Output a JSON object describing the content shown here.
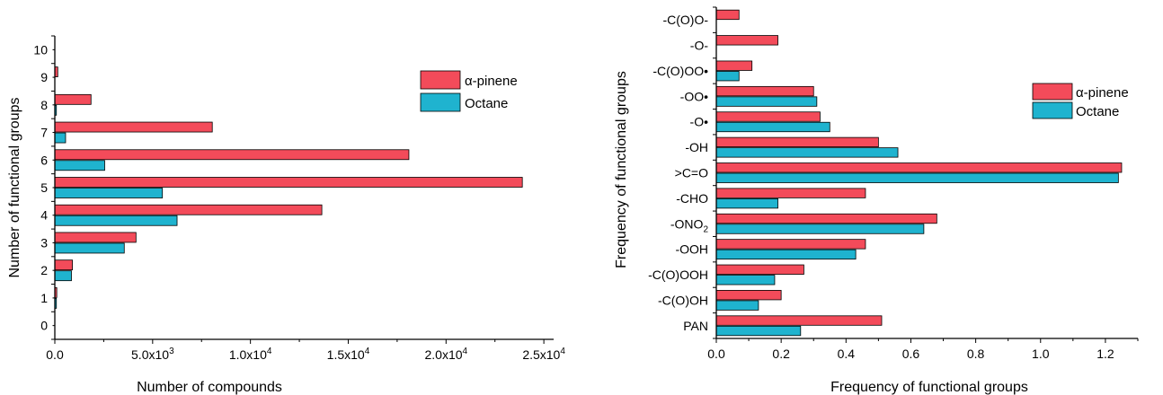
{
  "chart_data": [
    {
      "type": "bar",
      "orientation": "horizontal",
      "xlabel": "Number of compounds",
      "ylabel": "Number of functional groups",
      "categories": [
        "0",
        "1",
        "2",
        "3",
        "4",
        "5",
        "6",
        "7",
        "8",
        "9",
        "10"
      ],
      "xlim": [
        0,
        25500
      ],
      "xticks": [
        0,
        5000,
        10000,
        15000,
        20000,
        25000
      ],
      "xtick_labels": [
        {
          "base": "0.0",
          "exp": ""
        },
        {
          "base": "5.0x10",
          "exp": "3"
        },
        {
          "base": "1.0x10",
          "exp": "4"
        },
        {
          "base": "1.5x10",
          "exp": "4"
        },
        {
          "base": "2.0x10",
          "exp": "4"
        },
        {
          "base": "2.5x10",
          "exp": "4"
        }
      ],
      "legend_position": "top-right",
      "series": [
        {
          "name": "α-pinene",
          "color": "#f34b5a",
          "values": [
            0,
            100,
            900,
            4150,
            13650,
            23900,
            18100,
            8050,
            1850,
            150,
            0
          ]
        },
        {
          "name": "Octane",
          "color": "#1fb3cf",
          "values": [
            0,
            80,
            850,
            3550,
            6250,
            5500,
            2550,
            550,
            80,
            0,
            0
          ]
        }
      ]
    },
    {
      "type": "bar",
      "orientation": "horizontal",
      "xlabel": "Frequency of functional groups",
      "ylabel": "Frequency of functional groups",
      "categories": [
        "PAN",
        "-C(O)OH",
        "-C(O)OOH",
        "-OOH",
        "-ONO2",
        "-CHO",
        ">C=O",
        "-OH",
        "-O•",
        "-OO•",
        "-C(O)OO•",
        "-O-",
        "-C(O)O-"
      ],
      "xlim": [
        0,
        1.3
      ],
      "xticks": [
        0,
        0.2,
        0.4,
        0.6,
        0.8,
        1.0,
        1.2
      ],
      "xtick_labels": [
        "0.0",
        "0.2",
        "0.4",
        "0.6",
        "0.8",
        "1.0",
        "1.2"
      ],
      "legend_position": "top-right",
      "series": [
        {
          "name": "α-pinene",
          "color": "#f34b5a",
          "values": [
            0.51,
            0.2,
            0.27,
            0.46,
            0.68,
            0.46,
            1.25,
            0.5,
            0.32,
            0.3,
            0.11,
            0.19,
            0.07
          ]
        },
        {
          "name": "Octane",
          "color": "#1fb3cf",
          "values": [
            0.26,
            0.13,
            0.18,
            0.43,
            0.64,
            0.19,
            1.24,
            0.56,
            0.35,
            0.31,
            0.07,
            0,
            0
          ]
        }
      ]
    }
  ]
}
